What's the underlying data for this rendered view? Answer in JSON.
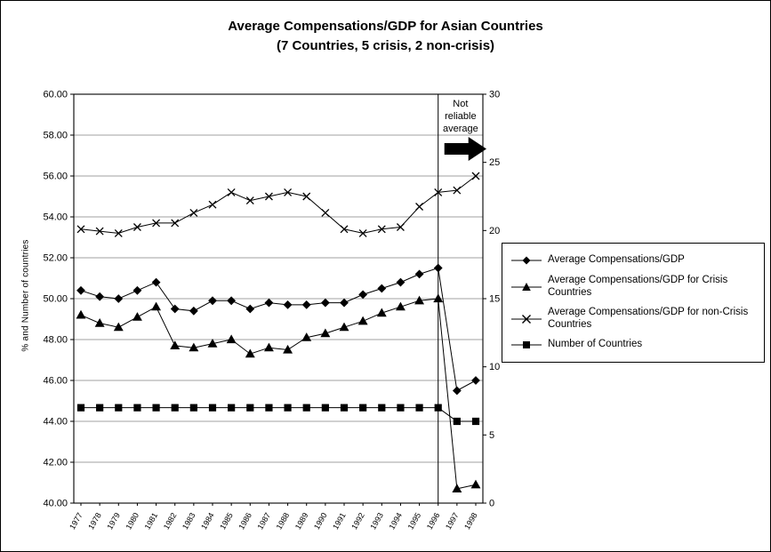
{
  "title": {
    "line1": "Average Compensations/GDP for Asian Countries",
    "line2": "(7 Countries, 5 crisis, 2 non-crisis)"
  },
  "annotation": {
    "lines": [
      "Not",
      "reliable",
      "average"
    ]
  },
  "colors": {
    "series": "#000000",
    "gridline": "#808080",
    "background": "#ffffff"
  },
  "chart_data": {
    "type": "line",
    "title": "Average Compensations/GDP for Asian Countries (7 Countries, 5 crisis, 2 non-crisis)",
    "ylabel_left": "% and Number of countries",
    "ylim_left": [
      40,
      60
    ],
    "ytick_step_left": 2,
    "ylim_right": [
      0,
      30
    ],
    "ytick_step_right": 5,
    "grid": true,
    "legend_position": "right",
    "separator_x": 1996,
    "x": [
      1977,
      1978,
      1979,
      1980,
      1981,
      1982,
      1983,
      1984,
      1985,
      1986,
      1987,
      1988,
      1989,
      1990,
      1991,
      1992,
      1993,
      1994,
      1995,
      1996,
      1997,
      1998
    ],
    "series": [
      {
        "name": "Average Compensations/GDP",
        "marker": "diamond",
        "axis": "left",
        "values": [
          50.4,
          50.1,
          50.0,
          50.4,
          50.8,
          49.5,
          49.4,
          49.9,
          49.9,
          49.5,
          49.8,
          49.7,
          49.7,
          49.8,
          49.8,
          50.2,
          50.5,
          50.8,
          51.2,
          51.5,
          45.5,
          46.0
        ]
      },
      {
        "name": "Average Compensations/GDP for Crisis Countries",
        "marker": "triangle",
        "axis": "left",
        "values": [
          49.2,
          48.8,
          48.6,
          49.1,
          49.6,
          47.7,
          47.6,
          47.8,
          48.0,
          47.3,
          47.6,
          47.5,
          48.1,
          48.3,
          48.6,
          48.9,
          49.3,
          49.6,
          49.9,
          50.0,
          40.7,
          40.9
        ]
      },
      {
        "name": "Average Compensations/GDP for non-Crisis Countries",
        "marker": "x",
        "axis": "left",
        "values": [
          53.4,
          53.3,
          53.2,
          53.5,
          53.7,
          53.7,
          54.2,
          54.6,
          55.2,
          54.8,
          55.0,
          55.2,
          55.0,
          54.2,
          53.4,
          53.2,
          53.4,
          53.5,
          54.5,
          55.2,
          55.3,
          56.0
        ]
      },
      {
        "name": "Number of Countries",
        "marker": "square",
        "axis": "right",
        "values": [
          7,
          7,
          7,
          7,
          7,
          7,
          7,
          7,
          7,
          7,
          7,
          7,
          7,
          7,
          7,
          7,
          7,
          7,
          7,
          7,
          6,
          6
        ]
      }
    ]
  }
}
